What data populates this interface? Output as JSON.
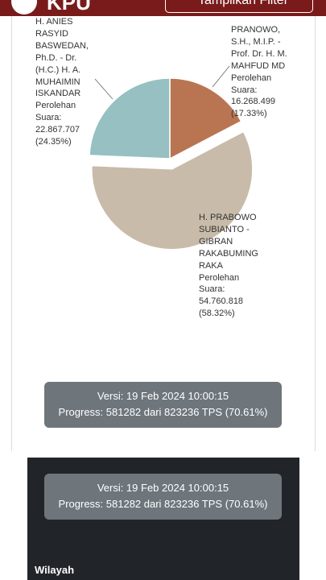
{
  "header": {
    "brand": "KPU",
    "filter_button": "Tampilkan Filter"
  },
  "chart_data": {
    "type": "pie",
    "categories": [
      "PRANOWO,\nS.H., M.I.P. -\nProf. Dr. H. M.\nMAHFUD MD",
      "H. PRABOWO\nSUBIANTO -\nGIBRAN\nRAKABUMING\nRAKA",
      "H. ANIES\nRASYID\nBASWEDAN,\nPh.D. - Dr.\n(H.C.) H. A.\nMUHAIMIN\nISKANDAR"
    ],
    "values": [
      17.33,
      58.32,
      24.35
    ],
    "value_labels": [
      "(17.33%)",
      "(58.32%)",
      "(24.35%)"
    ],
    "vote_caption": "Perolehan\nSuara:",
    "votes": [
      "16.268.499",
      "54.760.818",
      "22.867.707"
    ],
    "colors": [
      "#b97552",
      "#c8bba9",
      "#96c0c2"
    ]
  },
  "versions": [
    {
      "version": "Versi: 19 Feb 2024 10:00:15",
      "progress": "Progress: 581282 dari 823236 TPS (70.61%)"
    },
    {
      "version": "Versi: 19 Feb 2024 10:00:15",
      "progress": "Progress: 581282 dari 823236 TPS (70.61%)"
    }
  ],
  "section_title": "Wilayah"
}
